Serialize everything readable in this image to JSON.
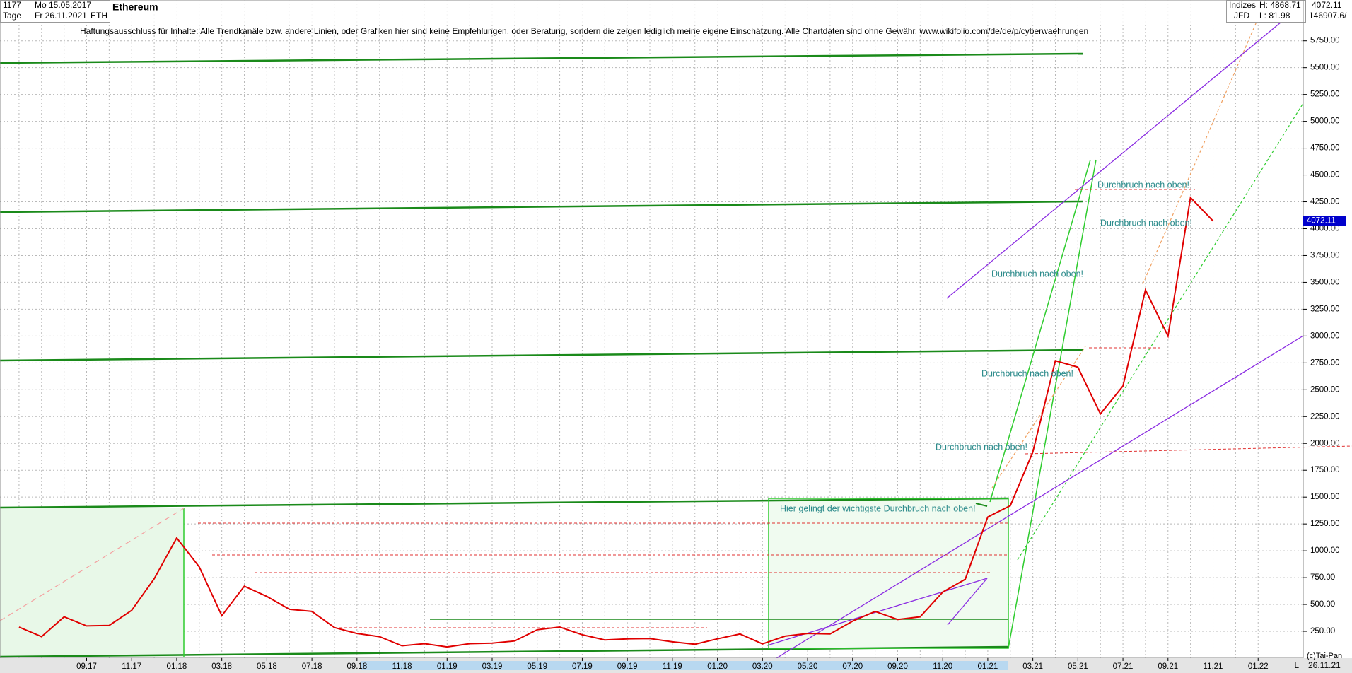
{
  "header": {
    "count": "1177",
    "start": "Mo 15.05.2017",
    "period": "Tage",
    "end": "Fr 26.11.2021",
    "symbol": "ETH",
    "group": "Indizes",
    "broker": "JFD",
    "high": "H: 4868.71",
    "low": "L: 81.98",
    "last": "4072.11",
    "volume": "146907.6/",
    "copyright": "(c)Tai-Pan",
    "last_date": "26.11.21",
    "scale_mode": "L"
  },
  "chart_data": {
    "type": "line",
    "title": "Ethereum",
    "subtitle": "Haftungsausschluss für Inhalte: Alle Trendkanäle bzw. andere Linien, oder Grafiken hier sind keine Empfehlungen, oder Beratung, sondern die zeigen lediglich meine eigene Einschätzung. Alle Chartdaten sind ohne Gewähr.  www.wikifolio.com/de/de/p/cyberwaehrungen",
    "categories": [
      null,
      null,
      null,
      "09.17",
      null,
      "11.17",
      null,
      "01.18",
      null,
      "03.18",
      null,
      "05.18",
      null,
      "07.18",
      null,
      "09.18",
      null,
      "11.18",
      null,
      "01.19",
      null,
      "03.19",
      null,
      "05.19",
      null,
      "07.19",
      null,
      "09.19",
      null,
      "11.19",
      null,
      "01.20",
      null,
      "03.20",
      null,
      "05.20",
      null,
      "07.20",
      null,
      "09.20",
      null,
      "11.20",
      null,
      "01.21",
      null,
      "03.21",
      null,
      "05.21",
      null,
      "07.21",
      null,
      "09.21",
      null,
      "11.21",
      null,
      "01.22"
    ],
    "series": [
      {
        "name": "ETH",
        "color": "#e00000",
        "values": [
          290,
          200,
          385,
          300,
          305,
          445,
          740,
          1120,
          850,
          395,
          670,
          575,
          455,
          435,
          285,
          230,
          200,
          115,
          135,
          105,
          135,
          140,
          160,
          265,
          290,
          218,
          170,
          180,
          183,
          152,
          130,
          180,
          225,
          133,
          205,
          230,
          225,
          345,
          435,
          360,
          385,
          615,
          735,
          1315,
          1420,
          1920,
          2770,
          2710,
          2275,
          2535,
          3430,
          3000,
          4290,
          4072,
          null,
          null
        ]
      }
    ],
    "ylim": [
      0,
      6130
    ],
    "yticks": [
      {
        "value": 250,
        "label": "250.00"
      },
      {
        "value": 500,
        "label": "500.00"
      },
      {
        "value": 750,
        "label": "750.00"
      },
      {
        "value": 1000,
        "label": "1000.00"
      },
      {
        "value": 1250,
        "label": "1250.00"
      },
      {
        "value": 1500,
        "label": "1500.00"
      },
      {
        "value": 1750,
        "label": "1750.00"
      },
      {
        "value": 2000,
        "label": "2000.00"
      },
      {
        "value": 2250,
        "label": "2250.00"
      },
      {
        "value": 2500,
        "label": "2500.00"
      },
      {
        "value": 2750,
        "label": "2750.00"
      },
      {
        "value": 3000,
        "label": "3000.00"
      },
      {
        "value": 3250,
        "label": "3250.00"
      },
      {
        "value": 3500,
        "label": "3500.00"
      },
      {
        "value": 3750,
        "label": "3750.00"
      },
      {
        "value": 4000,
        "label": "4000.00"
      },
      {
        "value": 4250,
        "label": "4250.00"
      },
      {
        "value": 4500,
        "label": "4500.00"
      },
      {
        "value": 4750,
        "label": "4750.00"
      },
      {
        "value": 5000,
        "label": "5000.00"
      },
      {
        "value": 5250,
        "label": "5250.00"
      },
      {
        "value": 5500,
        "label": "5500.00"
      },
      {
        "value": 5750,
        "label": "5750.00"
      }
    ],
    "current_value": 4072.11,
    "current_color": "#0000cc",
    "grid": true,
    "annotations": [
      "Durchbruch nach oben!",
      "Durchbruch nach oben!",
      "Durchbruch nach oben!",
      "Durchbruch nach oben!",
      "Durchbruch nach oben!",
      "Hier gelingt der wichtigste Durchbruch nach oben!"
    ]
  }
}
